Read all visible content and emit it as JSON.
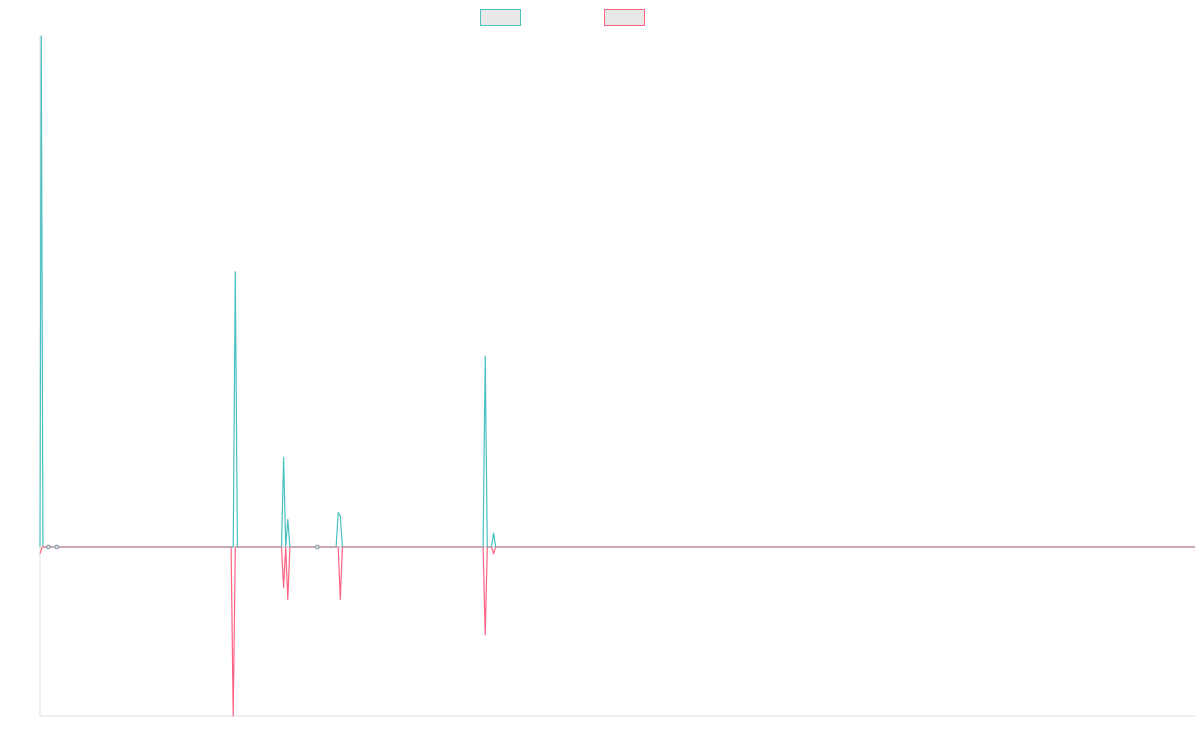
{
  "chart_data": {
    "type": "line",
    "title": "",
    "xlabel": "",
    "ylabel": "",
    "grid": false,
    "legend_placement": "top-center",
    "x_count": 275,
    "ylim": [
      -100,
      290
    ],
    "series": [
      {
        "name": "",
        "color": "#4bc0c0",
        "fill_color": "#e8e8e8",
        "points": [
          [
            0,
            0
          ],
          [
            0.3,
            297
          ],
          [
            0.7,
            0
          ],
          [
            2,
            0
          ],
          [
            4,
            0
          ],
          [
            45,
            0
          ],
          [
            45.5,
            0
          ],
          [
            46,
            0
          ],
          [
            46.5,
            160
          ],
          [
            47,
            0
          ],
          [
            48,
            0
          ],
          [
            57.5,
            0
          ],
          [
            58,
            52
          ],
          [
            58.5,
            0
          ],
          [
            59,
            16
          ],
          [
            59.5,
            0
          ],
          [
            66,
            0
          ],
          [
            70.5,
            0
          ],
          [
            71,
            20
          ],
          [
            71.5,
            18
          ],
          [
            72,
            0
          ],
          [
            105,
            0
          ],
          [
            105.5,
            0
          ],
          [
            106,
            111
          ],
          [
            106.5,
            0
          ],
          [
            107,
            0
          ],
          [
            107.5,
            0
          ],
          [
            108,
            8
          ],
          [
            108.5,
            0
          ],
          [
            275,
            0
          ]
        ],
        "markers_x": [
          2,
          4,
          66
        ]
      },
      {
        "name": "",
        "color": "#ff6384",
        "fill_color": "#e8e8e8",
        "points": [
          [
            0,
            -4
          ],
          [
            0.5,
            0
          ],
          [
            2,
            0
          ],
          [
            4,
            0
          ],
          [
            45,
            0
          ],
          [
            45.5,
            0
          ],
          [
            46,
            -100
          ],
          [
            46.5,
            0
          ],
          [
            47,
            0
          ],
          [
            48,
            0
          ],
          [
            57.5,
            0
          ],
          [
            58,
            -24
          ],
          [
            58.5,
            0
          ],
          [
            59,
            -31
          ],
          [
            59.5,
            0
          ],
          [
            66,
            0
          ],
          [
            70.5,
            0
          ],
          [
            71,
            0
          ],
          [
            71.5,
            -31
          ],
          [
            72,
            0
          ],
          [
            105,
            0
          ],
          [
            105.5,
            0
          ],
          [
            106,
            -52
          ],
          [
            106.5,
            0
          ],
          [
            107,
            0
          ],
          [
            107.5,
            0
          ],
          [
            108,
            -4
          ],
          [
            108.5,
            0
          ],
          [
            275,
            0
          ]
        ],
        "markers_x": [
          2,
          4,
          66
        ]
      }
    ]
  }
}
